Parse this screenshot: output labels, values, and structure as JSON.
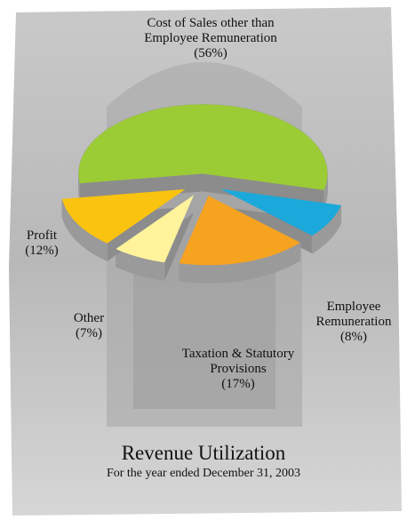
{
  "chart_data": {
    "type": "pie",
    "title": "Revenue Utilization",
    "subtitle": "For the year ended December 31, 2003",
    "categories": [
      "Cost of Sales other than Employee Remuneration",
      "Employee Remuneration",
      "Taxation & Statutory Provisions",
      "Other",
      "Profit"
    ],
    "values": [
      56,
      8,
      17,
      7,
      12
    ],
    "value_labels": [
      "(56%)",
      "(8%)",
      "(17%)",
      "(7%)",
      "(12%)"
    ],
    "colors": [
      "#9ccc35",
      "#1ba8da",
      "#f6a31f",
      "#fff49c",
      "#f9c30f"
    ]
  }
}
